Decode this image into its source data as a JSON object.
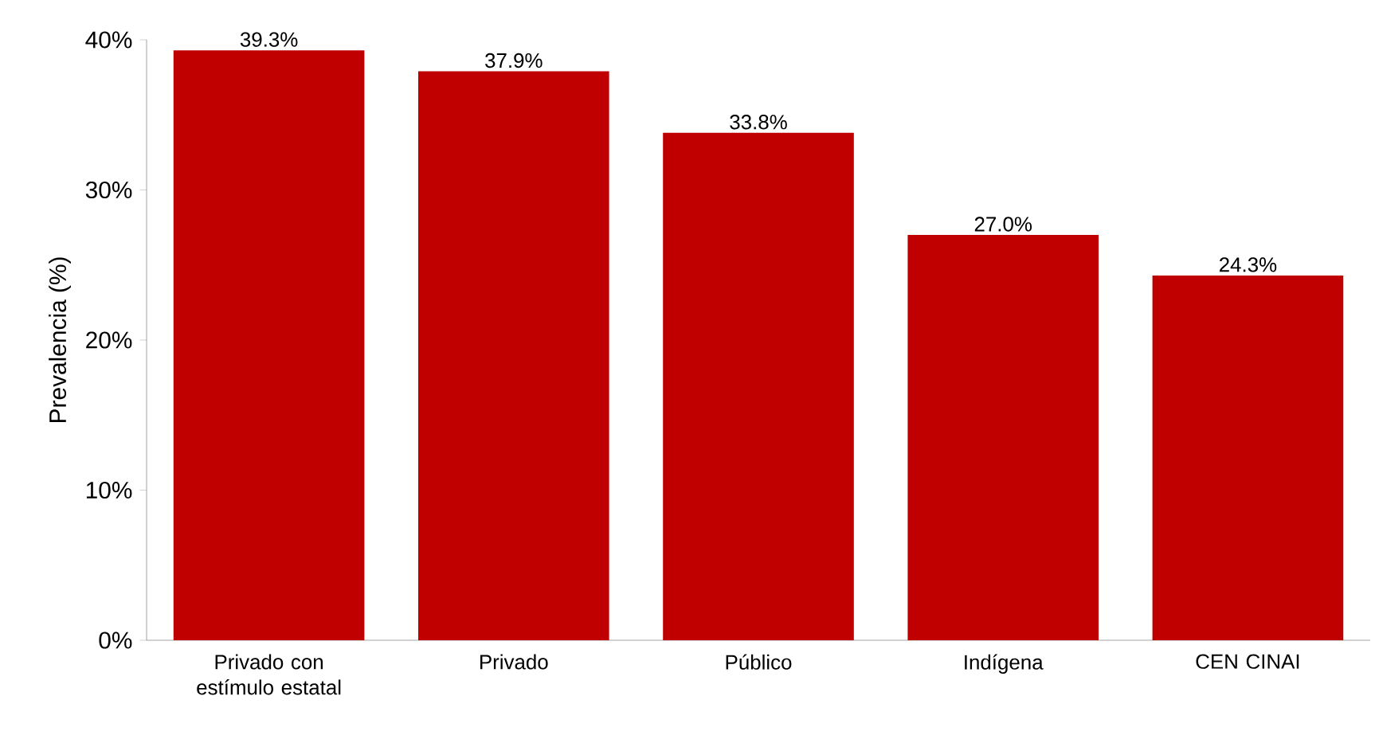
{
  "chart_data": {
    "type": "bar",
    "ylabel": "Prevalencia (%)",
    "categories": [
      "Privado con estímulo estatal",
      "Privado",
      "Público",
      "Indígena",
      "CEN CINAI"
    ],
    "values": [
      39.3,
      37.9,
      33.8,
      27.0,
      24.3
    ],
    "value_labels": [
      "39.3%",
      "37.9%",
      "33.8%",
      "27.0%",
      "24.3%"
    ],
    "color": "#c00000",
    "ylim": [
      0,
      40
    ],
    "yticks": [
      {
        "value": 0,
        "label": "0%"
      },
      {
        "value": 10,
        "label": "10%"
      },
      {
        "value": 20,
        "label": "20%"
      },
      {
        "value": 30,
        "label": "30%"
      },
      {
        "value": 40,
        "label": "40%"
      }
    ]
  }
}
